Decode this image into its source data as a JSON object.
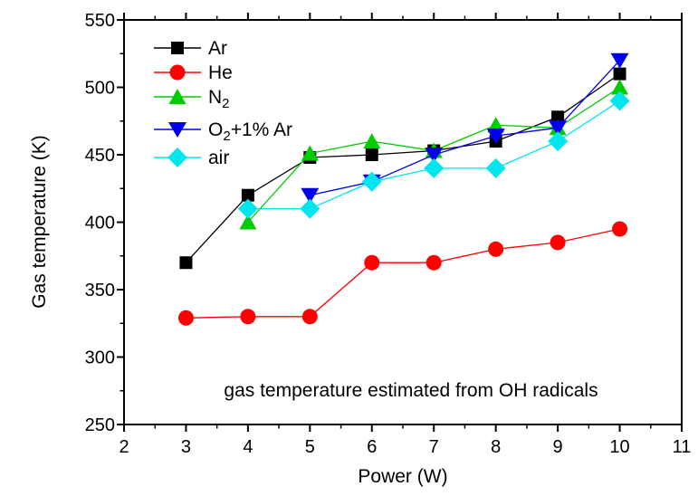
{
  "figure": {
    "background": "#FFFFFF",
    "annotation": "gas temperature estimated from OH radicals",
    "xlabel": "Power (W)",
    "ylabel": "Gas temperature (K)"
  },
  "chart_data": {
    "type": "line",
    "title": "",
    "annotation": "gas temperature estimated from OH radicals",
    "xlabel": "Power (W)",
    "ylabel": "Gas temperature (K)",
    "xlim": [
      2,
      11
    ],
    "ylim": [
      250,
      550
    ],
    "x_ticks": [
      2,
      3,
      4,
      5,
      6,
      7,
      8,
      9,
      10,
      11
    ],
    "y_ticks": [
      250,
      300,
      350,
      400,
      450,
      500,
      550
    ],
    "x_minor_step": 0.5,
    "y_minor_step": 25,
    "grid": false,
    "legend_position": "top-left",
    "axis_color": "#000000",
    "series": [
      {
        "name": "Ar",
        "legend": [
          {
            "text": "Ar"
          }
        ],
        "color": "#000000",
        "marker": "square",
        "x": [
          3,
          4,
          5,
          6,
          7,
          8,
          9,
          10
        ],
        "y": [
          370,
          420,
          448,
          450,
          453,
          460,
          478,
          510
        ]
      },
      {
        "name": "He",
        "legend": [
          {
            "text": "He"
          }
        ],
        "color": "#FF0000",
        "marker": "circle",
        "x": [
          3,
          4,
          5,
          6,
          7,
          8,
          9,
          10
        ],
        "y": [
          329,
          330,
          330,
          370,
          370,
          380,
          385,
          395
        ]
      },
      {
        "name": "N2",
        "legend": [
          {
            "text": "N"
          },
          {
            "text": "2",
            "sub": true
          }
        ],
        "color": "#00CC00",
        "marker": "triangle-up",
        "x": [
          4,
          5,
          6,
          7,
          8,
          9,
          10
        ],
        "y": [
          400,
          451,
          460,
          453,
          472,
          470,
          500
        ]
      },
      {
        "name": "O2+1% Ar",
        "legend": [
          {
            "text": "O"
          },
          {
            "text": "2",
            "sub": true
          },
          {
            "text": "+1% Ar"
          }
        ],
        "color": "#0000EE",
        "marker": "triangle-down",
        "x": [
          5,
          6,
          7,
          8,
          9,
          10
        ],
        "y": [
          420,
          430,
          450,
          464,
          470,
          520
        ]
      },
      {
        "name": "air",
        "legend": [
          {
            "text": "air"
          }
        ],
        "color": "#00E5EE",
        "marker": "diamond",
        "x": [
          4,
          5,
          6,
          7,
          8,
          9,
          10
        ],
        "y": [
          410,
          410,
          430,
          440,
          440,
          460,
          490
        ]
      }
    ]
  }
}
